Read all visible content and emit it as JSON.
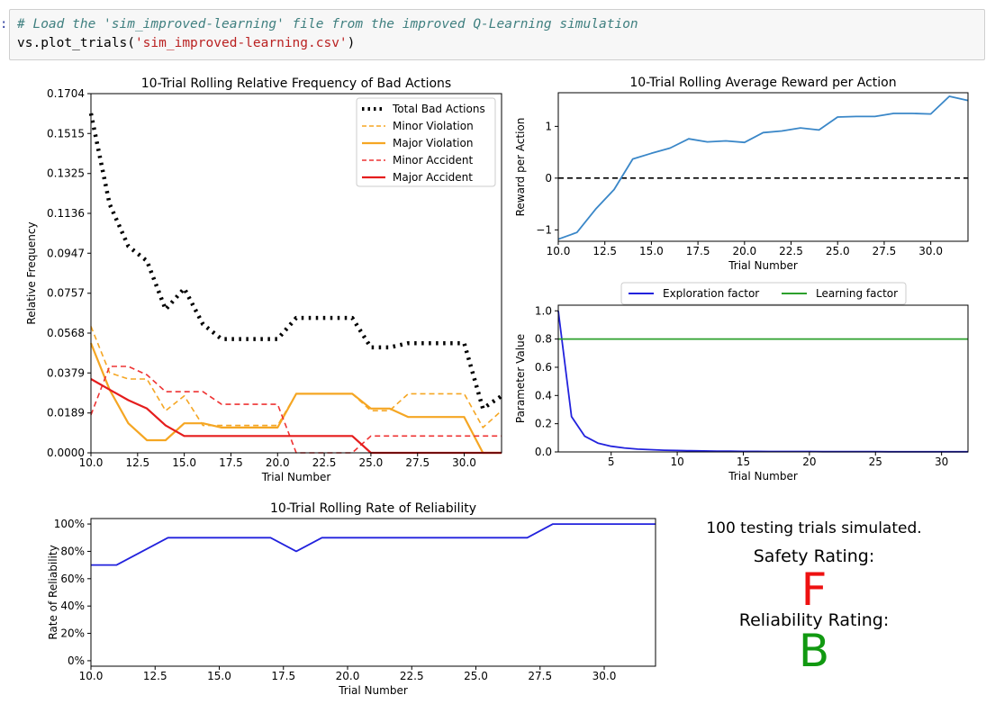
{
  "prompt": ":",
  "code": {
    "line1": "# Load the 'sim_improved-learning' file from the improved Q-Learning simulation",
    "line2_func": "vs.plot_trials(",
    "line2_arg": "'sim_improved-learning.csv'",
    "line2_end": ")"
  },
  "chart_data": [
    {
      "id": "bad-actions",
      "type": "line",
      "title": "10-Trial Rolling Relative Frequency of Bad Actions",
      "xlabel": "Trial Number",
      "ylabel": "Relative Frequency",
      "xlim": [
        10,
        32
      ],
      "ylim": [
        0,
        0.1704
      ],
      "xticks": [
        10,
        12.5,
        15,
        17.5,
        20,
        22.5,
        25,
        27.5,
        30
      ],
      "xticklabels": [
        "10.0",
        "12.5",
        "15.0",
        "17.5",
        "20.0",
        "22.5",
        "25.0",
        "27.5",
        "30.0"
      ],
      "yticks": [
        0,
        0.0189,
        0.0379,
        0.0568,
        0.0757,
        0.0947,
        0.1136,
        0.1325,
        0.1515,
        0.1704
      ],
      "yticklabels": [
        "0.0000",
        "0.0189",
        "0.0379",
        "0.0568",
        "0.0757",
        "0.0947",
        "0.1136",
        "0.1325",
        "0.1515",
        "0.1704"
      ],
      "legend": "top-right",
      "x": [
        10,
        11,
        12,
        13,
        14,
        15,
        16,
        17,
        18,
        19,
        20,
        21,
        22,
        23,
        24,
        25,
        26,
        27,
        28,
        29,
        30,
        31,
        32
      ],
      "series": [
        {
          "name": "Total Bad Actions",
          "color": "#000000",
          "dash": "2.5 5.5",
          "width": 4.5,
          "values": [
            0.161,
            0.118,
            0.098,
            0.091,
            0.068,
            0.078,
            0.061,
            0.054,
            0.054,
            0.054,
            0.054,
            0.064,
            0.064,
            0.064,
            0.064,
            0.05,
            0.05,
            0.052,
            0.052,
            0.052,
            0.052,
            0.021,
            0.027
          ]
        },
        {
          "name": "Minor Violation",
          "color": "#f5a623",
          "dash": "6 4",
          "width": 1.6,
          "values": [
            0.06,
            0.038,
            0.035,
            0.035,
            0.02,
            0.027,
            0.013,
            0.013,
            0.013,
            0.013,
            0.013,
            0.028,
            0.028,
            0.028,
            0.028,
            0.02,
            0.02,
            0.028,
            0.028,
            0.028,
            0.028,
            0.012,
            0.02
          ]
        },
        {
          "name": "Major Violation",
          "color": "#f5a623",
          "dash": "",
          "width": 2.2,
          "values": [
            0.052,
            0.03,
            0.014,
            0.006,
            0.006,
            0.014,
            0.014,
            0.012,
            0.012,
            0.012,
            0.012,
            0.028,
            0.028,
            0.028,
            0.028,
            0.021,
            0.021,
            0.017,
            0.017,
            0.017,
            0.017,
            0.0,
            0.0
          ]
        },
        {
          "name": "Minor Accident",
          "color": "#ee3333",
          "dash": "6 4",
          "width": 1.6,
          "values": [
            0.018,
            0.041,
            0.041,
            0.037,
            0.029,
            0.029,
            0.029,
            0.023,
            0.023,
            0.023,
            0.023,
            0.0,
            0.0,
            0.0,
            0.0,
            0.008,
            0.008,
            0.008,
            0.008,
            0.008,
            0.008,
            0.008,
            0.008
          ]
        },
        {
          "name": "Major Accident",
          "color": "#e51d1d",
          "dash": "",
          "width": 2.2,
          "values": [
            0.035,
            0.03,
            0.025,
            0.021,
            0.013,
            0.008,
            0.008,
            0.008,
            0.008,
            0.008,
            0.008,
            0.008,
            0.008,
            0.008,
            0.008,
            0.0,
            0.0,
            0.0,
            0.0,
            0.0,
            0.0,
            0.0,
            0.0
          ]
        }
      ]
    },
    {
      "id": "reward",
      "type": "line",
      "title": "10-Trial Rolling Average Reward per Action",
      "xlabel": "Trial Number",
      "ylabel": "Reward per Action",
      "xlim": [
        10,
        32
      ],
      "ylim": [
        -1.22,
        1.65
      ],
      "xticks": [
        10,
        12.5,
        15,
        17.5,
        20,
        22.5,
        25,
        27.5,
        30
      ],
      "xticklabels": [
        "10.0",
        "12.5",
        "15.0",
        "17.5",
        "20.0",
        "22.5",
        "25.0",
        "27.5",
        "30.0"
      ],
      "yticks": [
        -1,
        0,
        1
      ],
      "yticklabels": [
        "−1",
        "0",
        "1"
      ],
      "zero_line": true,
      "x": [
        10,
        11,
        12,
        13,
        14,
        15,
        16,
        17,
        18,
        19,
        20,
        21,
        22,
        23,
        24,
        25,
        26,
        27,
        28,
        29,
        30,
        31,
        32
      ],
      "series": [
        {
          "name": "",
          "color": "#3a87c8",
          "width": 1.8,
          "values": [
            -1.18,
            -1.05,
            -0.6,
            -0.22,
            0.37,
            0.48,
            0.58,
            0.76,
            0.7,
            0.72,
            0.69,
            0.88,
            0.91,
            0.97,
            0.93,
            1.18,
            1.19,
            1.19,
            1.25,
            1.25,
            1.24,
            1.58,
            1.5
          ]
        }
      ]
    },
    {
      "id": "parameters",
      "type": "line",
      "title": "",
      "xlabel": "Trial Number",
      "ylabel": "Parameter Value",
      "xlim": [
        1,
        32
      ],
      "ylim": [
        0,
        1.04
      ],
      "xticks": [
        5,
        10,
        15,
        20,
        25,
        30
      ],
      "xticklabels": [
        "5",
        "10",
        "15",
        "20",
        "25",
        "30"
      ],
      "yticks": [
        0,
        0.2,
        0.4,
        0.6,
        0.8,
        1.0
      ],
      "yticklabels": [
        "0.0",
        "0.2",
        "0.4",
        "0.6",
        "0.8",
        "1.0"
      ],
      "legend": "top-center",
      "x": [
        1,
        2,
        3,
        4,
        5,
        6,
        7,
        8,
        9,
        10,
        11,
        12,
        13,
        14,
        15,
        16,
        17,
        18,
        19,
        20,
        21,
        22,
        23,
        24,
        25,
        26,
        27,
        28,
        29,
        30,
        31,
        32
      ],
      "series": [
        {
          "name": "Exploration factor",
          "color": "#2222dd",
          "width": 1.8,
          "values": [
            1.0,
            0.25,
            0.111,
            0.0625,
            0.04,
            0.028,
            0.02,
            0.016,
            0.012,
            0.01,
            0.008,
            0.007,
            0.006,
            0.005,
            0.004,
            0.004,
            0.003,
            0.003,
            0.003,
            0.003,
            0.002,
            0.002,
            0.002,
            0.002,
            0.002,
            0.001,
            0.001,
            0.001,
            0.001,
            0.001,
            0.001,
            0.001
          ]
        },
        {
          "name": "Learning factor",
          "color": "#2ca02c",
          "width": 1.8,
          "values": [
            0.8,
            0.8,
            0.8,
            0.8,
            0.8,
            0.8,
            0.8,
            0.8,
            0.8,
            0.8,
            0.8,
            0.8,
            0.8,
            0.8,
            0.8,
            0.8,
            0.8,
            0.8,
            0.8,
            0.8,
            0.8,
            0.8,
            0.8,
            0.8,
            0.8,
            0.8,
            0.8,
            0.8,
            0.8,
            0.8,
            0.8,
            0.8
          ]
        }
      ]
    },
    {
      "id": "reliability",
      "type": "line",
      "title": "10-Trial Rolling Rate of Reliability",
      "xlabel": "Trial Number",
      "ylabel": "Rate of Reliability",
      "xlim": [
        10,
        32
      ],
      "ylim": [
        -0.04,
        1.04
      ],
      "xticks": [
        10,
        12.5,
        15,
        17.5,
        20,
        22.5,
        25,
        27.5,
        30
      ],
      "xticklabels": [
        "10.0",
        "12.5",
        "15.0",
        "17.5",
        "20.0",
        "22.5",
        "25.0",
        "27.5",
        "30.0"
      ],
      "yticks": [
        0,
        0.2,
        0.4,
        0.6,
        0.8,
        1.0
      ],
      "yticklabels": [
        "0%",
        "20%",
        "40%",
        "60%",
        "80%",
        "100%"
      ],
      "x": [
        10,
        11,
        12,
        13,
        14,
        15,
        16,
        17,
        18,
        19,
        20,
        21,
        22,
        23,
        24,
        25,
        26,
        27,
        28,
        29,
        30,
        31,
        32
      ],
      "series": [
        {
          "name": "",
          "color": "#2222dd",
          "width": 1.8,
          "values": [
            0.7,
            0.7,
            0.8,
            0.9,
            0.9,
            0.9,
            0.9,
            0.9,
            0.8,
            0.9,
            0.9,
            0.9,
            0.9,
            0.9,
            0.9,
            0.9,
            0.9,
            0.9,
            1.0,
            1.0,
            1.0,
            1.0,
            1.0
          ]
        }
      ]
    }
  ],
  "summary": {
    "trials_text": "100 testing trials simulated.",
    "safety_label": "Safety Rating:",
    "safety_grade": "F",
    "safety_color": "#ee1111",
    "reliability_label": "Reliability Rating:",
    "reliability_grade": "B",
    "reliability_color": "#119911"
  }
}
